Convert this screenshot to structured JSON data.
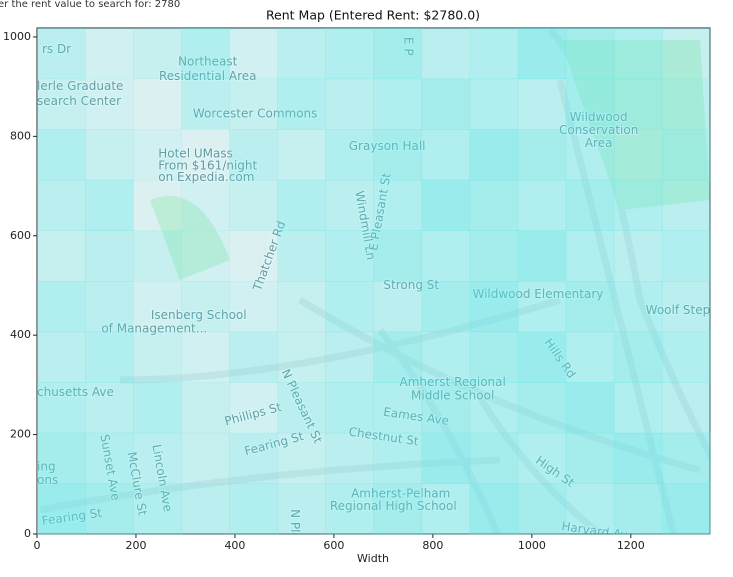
{
  "prompt_text": "er the rent value to search for: 2780",
  "chart_data": {
    "type": "heatmap",
    "title": "Rent Map (Entered Rent: $2780.0)",
    "x_label": "Width",
    "xlim": [
      0,
      1360
    ],
    "ylim": [
      0,
      1018
    ],
    "xticks": [
      0,
      200,
      400,
      600,
      800,
      1000,
      1200
    ],
    "yticks": [
      0,
      200,
      400,
      600,
      800,
      1000
    ],
    "color": "#55e6e6",
    "z": [
      [
        0.5,
        0.3,
        0.4,
        0.6,
        0.3,
        0.5,
        0.6,
        0.7,
        0.5,
        0.6,
        0.8,
        0.7,
        0.6,
        0.4
      ],
      [
        0.4,
        0.3,
        0.2,
        0.5,
        0.4,
        0.6,
        0.5,
        0.6,
        0.7,
        0.6,
        0.5,
        0.7,
        0.6,
        0.5
      ],
      [
        0.6,
        0.4,
        0.3,
        0.2,
        0.5,
        0.4,
        0.6,
        0.7,
        0.6,
        0.8,
        0.7,
        0.6,
        0.5,
        0.6
      ],
      [
        0.5,
        0.6,
        0.2,
        0.3,
        0.4,
        0.6,
        0.5,
        0.6,
        0.8,
        0.7,
        0.6,
        0.7,
        0.6,
        0.5
      ],
      [
        0.4,
        0.5,
        0.4,
        0.3,
        0.2,
        0.5,
        0.6,
        0.7,
        0.6,
        0.7,
        0.8,
        0.6,
        0.5,
        0.6
      ],
      [
        0.6,
        0.5,
        0.3,
        0.4,
        0.3,
        0.4,
        0.6,
        0.5,
        0.7,
        0.8,
        0.6,
        0.7,
        0.6,
        0.5
      ],
      [
        0.5,
        0.6,
        0.4,
        0.3,
        0.5,
        0.4,
        0.5,
        0.7,
        0.6,
        0.7,
        0.8,
        0.6,
        0.7,
        0.6
      ],
      [
        0.6,
        0.5,
        0.6,
        0.4,
        0.3,
        0.5,
        0.6,
        0.6,
        0.7,
        0.6,
        0.7,
        0.8,
        0.6,
        0.5
      ],
      [
        0.7,
        0.6,
        0.5,
        0.4,
        0.5,
        0.4,
        0.5,
        0.6,
        0.8,
        0.7,
        0.6,
        0.7,
        0.8,
        0.7
      ],
      [
        0.8,
        0.7,
        0.6,
        0.5,
        0.6,
        0.5,
        0.6,
        0.7,
        0.6,
        0.8,
        0.7,
        0.6,
        0.7,
        0.8
      ]
    ],
    "map_labels": [
      "rs Dr",
      "Northeast",
      "Residential Area",
      "lerle Graduate",
      "search Center",
      "Worcester Commons",
      "Grayson Hall",
      "Hotel UMass",
      "From $161/night",
      "on Expedia.com",
      "Wildwood",
      "Conservation",
      "Area",
      "Windmill Ln",
      "E Pleasant St",
      "Thatcher Rd",
      "Strong St",
      "Wildwood Elementary",
      "Woolf Step",
      "Isenberg School",
      "of Management...",
      "Hills Rd",
      "Amherst Regional",
      "Middle School",
      "chusetts Ave",
      "Eames Ave",
      "Chestnut St",
      "Phillips St",
      "Fearing St",
      "N Pleasant St",
      "Sunset Ave",
      "McClure St",
      "Lincoln Ave",
      "High St",
      "Amherst-Pelham",
      "Regional High School",
      "Fearing St",
      "ing",
      "ons",
      "Harvard Ave",
      "N Pleasant",
      "E P"
    ]
  }
}
